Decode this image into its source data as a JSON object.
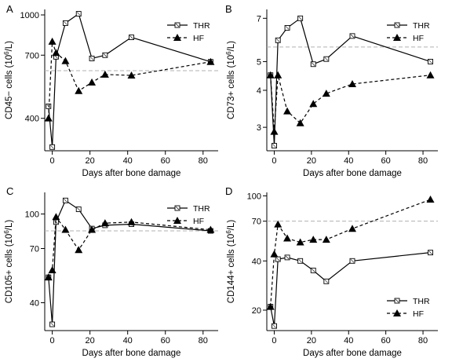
{
  "figure": {
    "colors": {
      "reference_line": "#b0b0b0",
      "ink": "#000000"
    }
  },
  "chart_data": [
    {
      "panel": "A",
      "type": "line",
      "xlabel": "Days after bone damage",
      "ylabel": "CD45− cells (10⁶/L)",
      "ylabel_parts": {
        "main": "CD45− cells (10",
        "sup": "6",
        "tail": "/L)"
      },
      "scale_y": "log",
      "xlim": [
        -4,
        88
      ],
      "ylim": [
        300,
        1050
      ],
      "xticks": [
        0,
        20,
        40,
        60,
        80
      ],
      "yticks": [
        400,
        700,
        1000
      ],
      "reference_line": 610,
      "legend": {
        "position": "top-right",
        "entries": [
          "THR",
          "HF"
        ]
      },
      "series": [
        {
          "name": "THR",
          "marker": "open-square",
          "line": "solid",
          "x": [
            -2,
            0,
            2,
            7,
            14,
            21,
            28,
            42,
            84
          ],
          "y": [
            445,
            310,
            690,
            930,
            1010,
            680,
            700,
            820,
            660
          ]
        },
        {
          "name": "HF",
          "marker": "filled-triangle",
          "line": "dashed",
          "x": [
            -2,
            0,
            2,
            7,
            14,
            21,
            28,
            42,
            84
          ],
          "y": [
            400,
            790,
            715,
            665,
            510,
            550,
            590,
            585,
            660
          ]
        }
      ]
    },
    {
      "panel": "B",
      "type": "line",
      "xlabel": "Days after bone damage",
      "ylabel": "CD73+ cells (10⁶/L)",
      "ylabel_parts": {
        "main": "CD73+ cells (10",
        "sup": "6",
        "tail": "/L)"
      },
      "scale_y": "log",
      "xlim": [
        -4,
        88
      ],
      "ylim": [
        2.5,
        7.5
      ],
      "xticks": [
        0,
        20,
        40,
        60,
        80
      ],
      "yticks": [
        3,
        4,
        5,
        7
      ],
      "reference_line": 5.6,
      "legend": {
        "position": "top-right",
        "entries": [
          "THR",
          "HF"
        ]
      },
      "series": [
        {
          "name": "THR",
          "marker": "open-square",
          "line": "solid",
          "x": [
            -2,
            0,
            2,
            7,
            14,
            21,
            28,
            42,
            84
          ],
          "y": [
            4.5,
            2.6,
            5.9,
            6.5,
            7.0,
            4.9,
            5.1,
            6.1,
            5.0
          ]
        },
        {
          "name": "HF",
          "marker": "filled-triangle",
          "line": "dashed",
          "x": [
            -2,
            0,
            2,
            7,
            14,
            21,
            28,
            42,
            84
          ],
          "y": [
            4.5,
            2.9,
            4.5,
            3.4,
            3.1,
            3.6,
            3.9,
            4.2,
            4.5
          ]
        }
      ]
    },
    {
      "panel": "C",
      "type": "line",
      "xlabel": "Days after bone damage",
      "ylabel": "CD105+ cells (10⁶/L)",
      "ylabel_parts": {
        "main": "CD105+ cells (10",
        "sup": "6",
        "tail": "/L)"
      },
      "scale_y": "log",
      "xlim": [
        -4,
        88
      ],
      "ylim": [
        30,
        125
      ],
      "xticks": [
        0,
        20,
        40,
        60,
        80
      ],
      "yticks": [
        40,
        70,
        100
      ],
      "reference_line": 84,
      "legend": {
        "position": "top-right",
        "entries": [
          "THR",
          "HF"
        ]
      },
      "series": [
        {
          "name": "THR",
          "marker": "open-square",
          "line": "solid",
          "x": [
            -2,
            0,
            2,
            7,
            14,
            21,
            28,
            42,
            84
          ],
          "y": [
            52,
            32,
            92,
            115,
            105,
            86,
            89,
            90,
            84
          ]
        },
        {
          "name": "HF",
          "marker": "filled-triangle",
          "line": "dashed",
          "x": [
            -2,
            0,
            2,
            7,
            14,
            21,
            28,
            42,
            84
          ],
          "y": [
            52,
            56,
            97,
            85,
            69,
            85,
            91,
            92,
            85
          ]
        }
      ]
    },
    {
      "panel": "D",
      "type": "line",
      "xlabel": "Days after bone damage",
      "ylabel": "CD144+ cells (10⁶/L)",
      "ylabel_parts": {
        "main": "CD144+ cells (10",
        "sup": "6",
        "tail": "/L)"
      },
      "scale_y": "log",
      "xlim": [
        -4,
        88
      ],
      "ylim": [
        15,
        105
      ],
      "xticks": [
        0,
        20,
        40,
        60,
        80
      ],
      "yticks": [
        20,
        40,
        70,
        100
      ],
      "reference_line": 70,
      "legend": {
        "position": "bottom-right",
        "entries": [
          "THR",
          "HF"
        ]
      },
      "series": [
        {
          "name": "THR",
          "marker": "open-square",
          "line": "solid",
          "x": [
            -2,
            0,
            2,
            7,
            14,
            21,
            28,
            42,
            84
          ],
          "y": [
            21,
            16,
            41,
            42,
            40,
            35,
            30,
            40,
            45
          ]
        },
        {
          "name": "HF",
          "marker": "filled-triangle",
          "line": "dashed",
          "x": [
            -2,
            0,
            2,
            7,
            14,
            21,
            28,
            42,
            84
          ],
          "y": [
            21,
            44,
            67,
            55,
            52,
            54,
            54,
            63,
            95
          ]
        }
      ]
    }
  ]
}
